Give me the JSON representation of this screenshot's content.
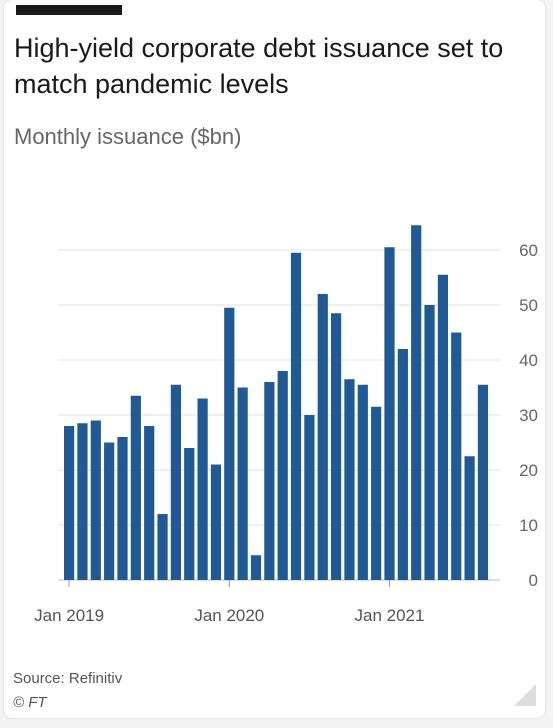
{
  "chart_data": {
    "type": "bar",
    "title": "High-yield corporate debt issuance set to match pandemic levels",
    "subtitle": "Monthly issuance ($bn)",
    "ylabel": "",
    "xlabel": "",
    "ylim": [
      0,
      60
    ],
    "yticks": [
      0,
      10,
      20,
      30,
      40,
      50,
      60
    ],
    "x_tick_labels": [
      {
        "label": "Jan 2019",
        "index": 0
      },
      {
        "label": "Jan 2020",
        "index": 12
      },
      {
        "label": "Jan 2021",
        "index": 24
      }
    ],
    "color": "#1f5a96",
    "grid": true,
    "values": [
      28,
      28.5,
      29,
      25,
      26,
      33.5,
      28,
      12,
      35.5,
      24,
      33,
      21,
      49.5,
      35,
      4.5,
      36,
      38,
      59.5,
      30,
      52,
      48.5,
      36.5,
      35.5,
      31.5,
      60.5,
      42,
      64.5,
      50,
      55.5,
      45,
      22.5,
      35.5
    ]
  },
  "footer": {
    "source": "Source: Refinitiv",
    "credit": "© FT"
  }
}
